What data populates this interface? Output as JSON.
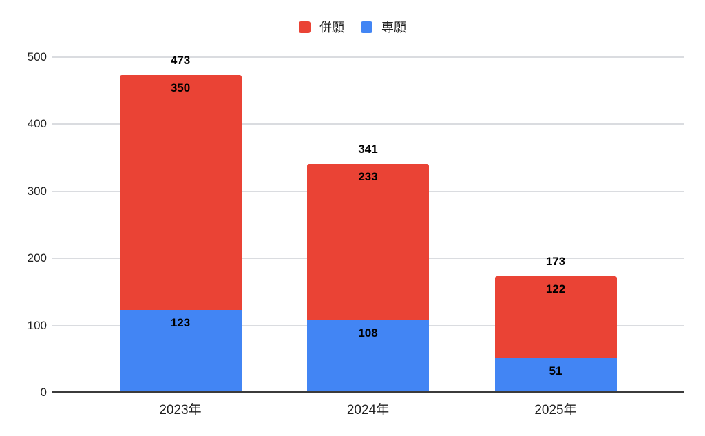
{
  "chart_data": {
    "type": "bar",
    "stacked": true,
    "title": "",
    "categories": [
      "2023年",
      "2024年",
      "2025年"
    ],
    "series": [
      {
        "name": "専願",
        "color": "#4285F4",
        "values": [
          123,
          108,
          51
        ]
      },
      {
        "name": "併願",
        "color": "#EA4335",
        "values": [
          350,
          233,
          122
        ]
      }
    ],
    "legend_order": [
      "併願",
      "専願"
    ],
    "totals": [
      473,
      341,
      173
    ],
    "total_labels": [
      "473",
      "341",
      "173"
    ],
    "segment_labels": {
      "併願": [
        "350",
        "233",
        "122"
      ],
      "専願": [
        "123",
        "108",
        "51"
      ]
    },
    "y_ticks": [
      0,
      100,
      200,
      300,
      400,
      500
    ],
    "y_tick_labels": [
      "0",
      "100",
      "200",
      "300",
      "400",
      "500"
    ],
    "ylim": [
      0,
      500
    ],
    "xlabel": "",
    "ylabel": "",
    "grid": true,
    "legend_position": "top"
  },
  "colors": {
    "heigan_red": "#EA4335",
    "sengan_blue": "#4285F4",
    "gridline": "#DADCE0",
    "axis_line": "#3b3b3b",
    "label_text": "#1f1f1f",
    "data_label_text": "#000000",
    "background": "#ffffff"
  }
}
